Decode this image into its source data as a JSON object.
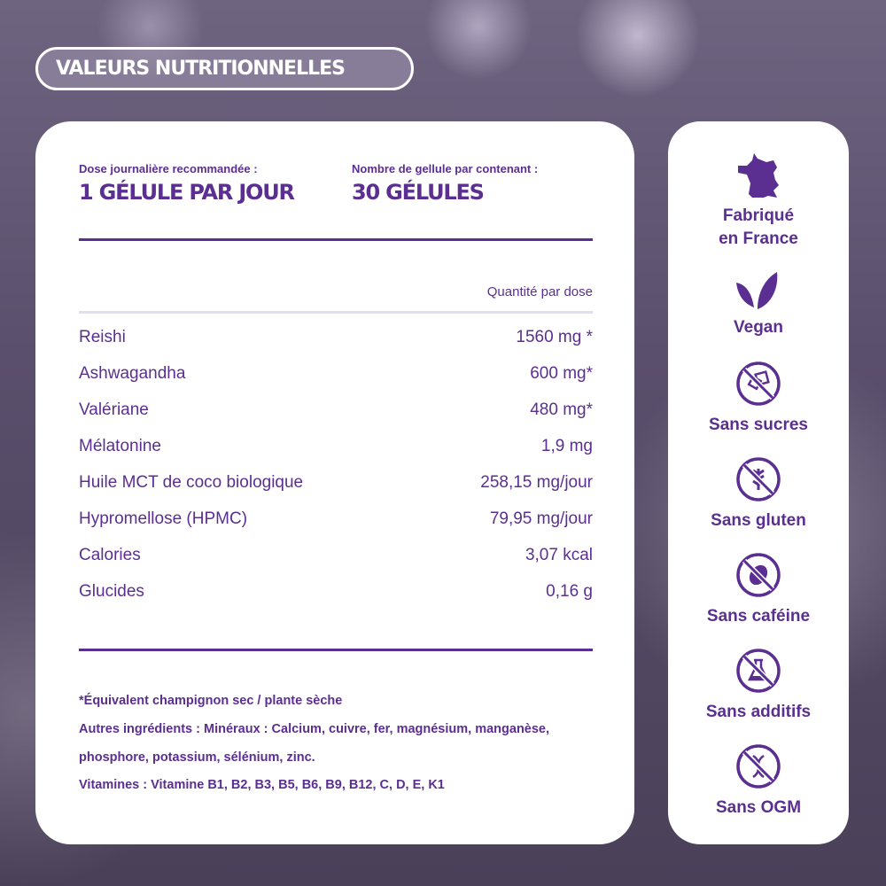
{
  "title": "VALEURS NUTRITIONNELLES",
  "dose": {
    "label": "Dose journalière recommandée :",
    "value": "1 GÉLULE PAR JOUR"
  },
  "count": {
    "label": "Nombre de gellule par contenant :",
    "value": "30 GÉLULES"
  },
  "table": {
    "header": "Quantité par dose",
    "rows": [
      {
        "name": "Reishi",
        "value": "1560 mg *"
      },
      {
        "name": "Ashwagandha",
        "value": "600 mg*"
      },
      {
        "name": "Valériane",
        "value": "480 mg*"
      },
      {
        "name": "Mélatonine",
        "value": "1,9 mg"
      },
      {
        "name": "Huile MCT de coco biologique",
        "value": "258,15 mg/jour"
      },
      {
        "name": "Hypromellose (HPMC)",
        "value": "79,95 mg/jour"
      },
      {
        "name": "Calories",
        "value": "3,07 kcal"
      },
      {
        "name": "Glucides",
        "value": "0,16 g"
      }
    ]
  },
  "notes": [
    "*Équivalent champignon sec / plante sèche",
    "Autres ingrédients : Minéraux : Calcium, cuivre, fer, magnésium, manganèse,",
    "phosphore, potassium, sélénium, zinc.",
    "Vitamines : Vitamine B1, B2, B3, B5, B6, B9, B12, C, D, E, K1"
  ],
  "badges": [
    {
      "icon": "france-map-icon",
      "l1": "Fabriqué",
      "l2": "en France"
    },
    {
      "icon": "leaves-icon",
      "l1": "Vegan"
    },
    {
      "icon": "no-sugar-icon",
      "l1": "Sans sucres"
    },
    {
      "icon": "no-gluten-icon",
      "l1": "Sans gluten"
    },
    {
      "icon": "no-caffeine-icon",
      "l1": "Sans caféine"
    },
    {
      "icon": "no-additives-icon",
      "l1": "Sans additifs"
    },
    {
      "icon": "no-gmo-icon",
      "l1": "Sans OGM"
    }
  ],
  "colors": {
    "brand": "#5b2f91",
    "divider": "#e4dcef"
  }
}
